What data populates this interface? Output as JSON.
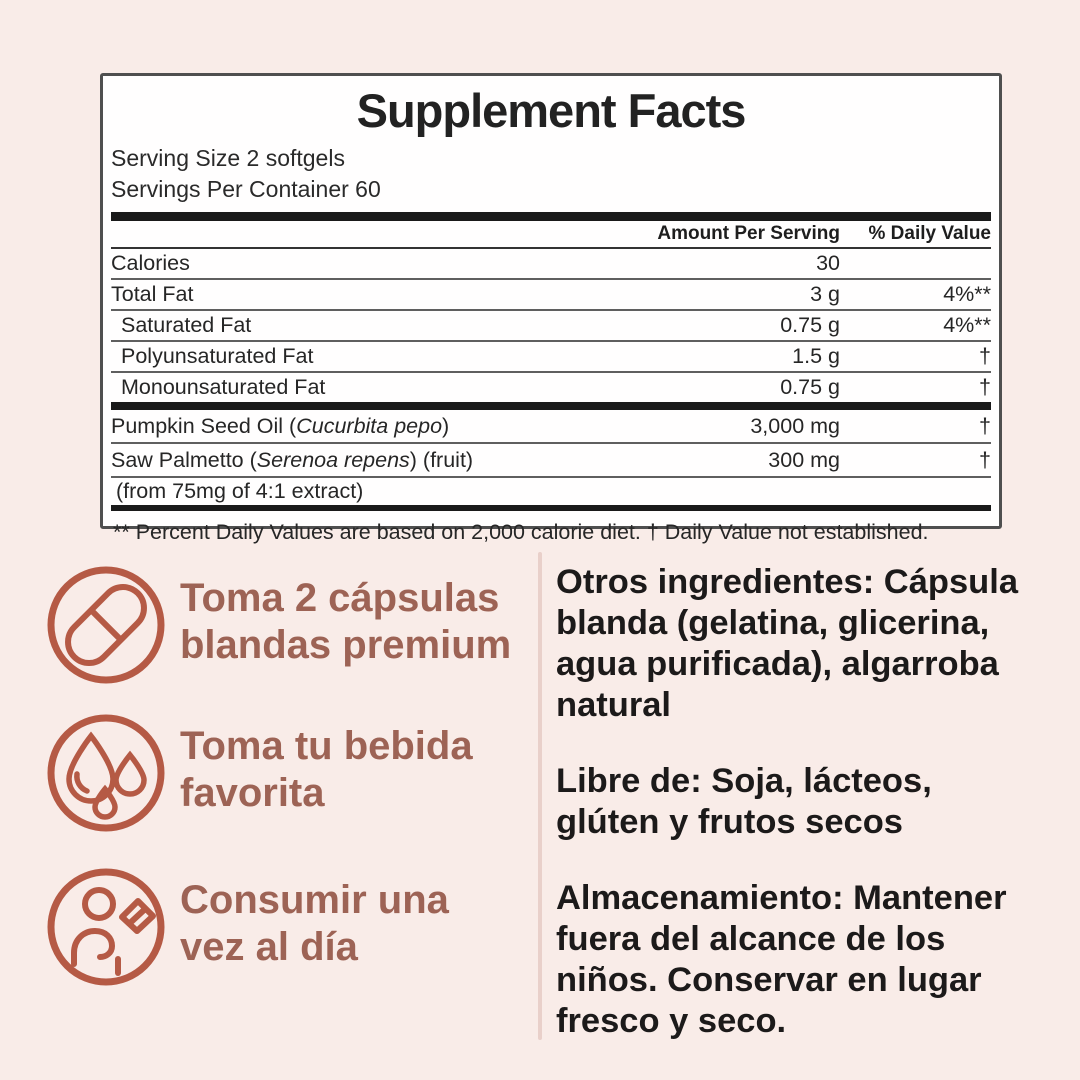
{
  "colors": {
    "background": "#f9ece8",
    "panel_background": "#fffefe",
    "accent_terracotta": "#b55a45",
    "heading_brown": "#9d6355",
    "text_dark": "#1c1a1a",
    "divider_pink": "#e9d0ca"
  },
  "supplement_facts": {
    "title": "Supplement Facts",
    "serving_size": "Serving Size 2 softgels",
    "servings_per_container": "Servings Per Container 60",
    "col_amount": "Amount Per Serving",
    "col_dv": "% Daily Value",
    "rows": [
      {
        "name": "Calories",
        "amount": "30",
        "dv": "",
        "indent": false,
        "section": 1
      },
      {
        "name": "Total Fat",
        "amount": "3 g",
        "dv": "4%**",
        "indent": false,
        "section": 1
      },
      {
        "name": "Saturated Fat",
        "amount": "0.75 g",
        "dv": "4%**",
        "indent": true,
        "section": 1
      },
      {
        "name": "Polyunsaturated Fat",
        "amount": "1.5 g",
        "dv": "†",
        "indent": true,
        "section": 1
      },
      {
        "name": "Monounsaturated Fat",
        "amount": "0.75 g",
        "dv": "†",
        "indent": true,
        "section": 1
      },
      {
        "name_pre": "Pumpkin Seed Oil (",
        "name_italic": "Cucurbita pepo",
        "name_post": ")",
        "amount": "3,000 mg",
        "dv": "†",
        "section": 2
      },
      {
        "name_pre": "Saw Palmetto (",
        "name_italic": "Serenoa repens",
        "name_post": ") (fruit)",
        "amount": "300 mg",
        "dv": "†",
        "section": 2,
        "sub_line": "(from 75mg of 4:1 extract)"
      }
    ],
    "footnote": "** Percent Daily Values are based on 2,000 calorie diet. † Daily Value not established."
  },
  "instructions": [
    {
      "icon": "pill-icon",
      "lines": [
        "Toma 2 cápsulas",
        "blandas premium"
      ]
    },
    {
      "icon": "drops-icon",
      "lines": [
        "Toma tu bebida",
        "favorita"
      ]
    },
    {
      "icon": "person-flag-icon",
      "lines": [
        "Consumir una",
        "vez al día"
      ]
    }
  ],
  "details": {
    "other_ingredients": [
      "Otros ingredientes: Cápsula",
      "blanda (gelatina, glicerina,",
      "agua purificada), algarroba",
      "natural"
    ],
    "free_from": [
      "Libre de: Soja, lácteos,",
      "glúten y frutos secos"
    ],
    "storage": [
      "Almacenamiento: Mantener",
      "fuera del alcance de los",
      "niños. Conservar en lugar",
      "fresco y seco."
    ]
  }
}
